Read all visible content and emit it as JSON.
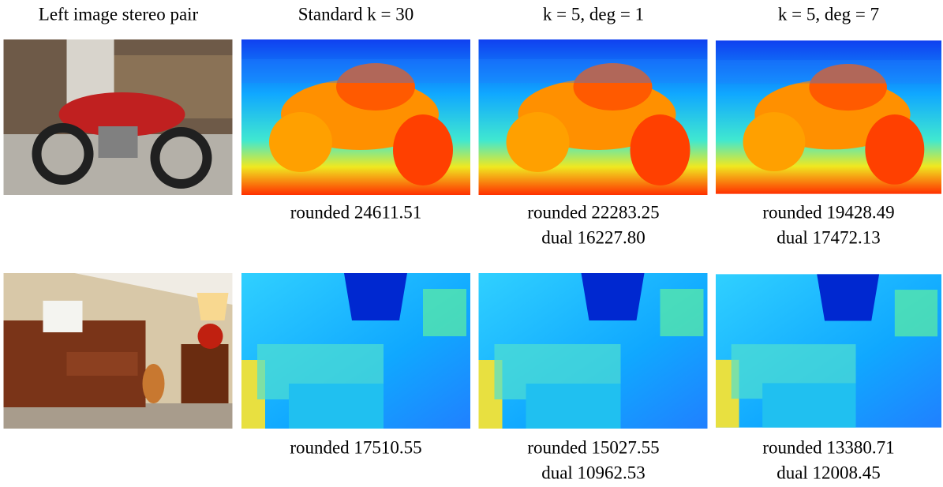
{
  "header": [
    "Left image stereo pair",
    "Standard k = 30",
    "k = 5, deg = 1",
    "k = 5, deg = 7"
  ],
  "rows": [
    {
      "captions": [
        [
          "rounded 24611.51"
        ],
        [
          "rounded 22283.25",
          "dual 16227.80"
        ],
        [
          "rounded 19428.49",
          "dual 17472.13"
        ]
      ]
    },
    {
      "captions": [
        [
          "rounded 17510.55"
        ],
        [
          "rounded 15027.55",
          "dual 10962.53"
        ],
        [
          "rounded 13380.71",
          "dual 12008.45"
        ]
      ]
    }
  ]
}
